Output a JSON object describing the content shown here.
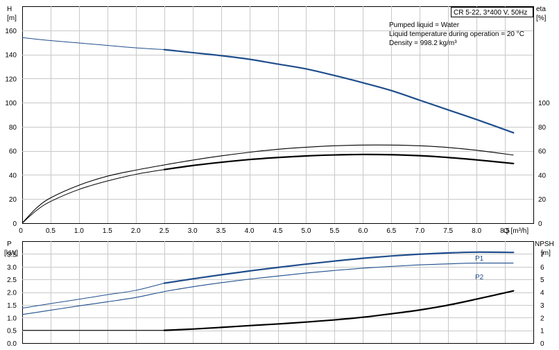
{
  "header": {
    "title": "CR 5-22, 3*400 V, 50Hz",
    "info": [
      "Pumped liquid = Water",
      "Liquid temperature during operation = 20 °C",
      "Density = 998.2 kg/m³"
    ]
  },
  "chart_data": [
    {
      "type": "line",
      "name": "head-efficiency",
      "xlabel": "Q [m³/h]",
      "xlim": [
        0,
        9
      ],
      "xticks": [
        "0",
        "0.5",
        "1.0",
        "1.5",
        "2.0",
        "2.5",
        "3.0",
        "3.5",
        "4.0",
        "4.5",
        "5.0",
        "5.5",
        "6.0",
        "6.5",
        "7.0",
        "7.5",
        "8.0",
        "8.5"
      ],
      "left_axis": {
        "label_line1": "H",
        "label_line2": "[m]",
        "ylim": [
          0,
          180
        ],
        "ticks": [
          "0",
          "20",
          "40",
          "60",
          "80",
          "100",
          "120",
          "140",
          "160"
        ]
      },
      "right_axis": {
        "label_line1": "eta",
        "label_line2": "[%]",
        "ylim": [
          0,
          180
        ],
        "ticks": [
          "0",
          "20",
          "40",
          "60",
          "80",
          "100"
        ]
      },
      "grid": true,
      "series": [
        {
          "role": "H",
          "color": "#1f4e8c",
          "x": [
            0,
            0.5,
            1.0,
            1.5,
            2.0,
            2.5,
            3.0,
            3.5,
            4.0,
            4.5,
            5.0,
            5.5,
            6.0,
            6.5,
            7.0,
            7.5,
            8.0,
            8.65
          ],
          "y": [
            154,
            151.5,
            149.5,
            147.5,
            145.5,
            144,
            141.5,
            139,
            136,
            132,
            128,
            122.5,
            116.5,
            110,
            102,
            94,
            86,
            75
          ],
          "bold_from": 2.5
        },
        {
          "role": "eta",
          "color": "#000000",
          "x": [
            0,
            0.25,
            0.5,
            1.0,
            1.5,
            2.0,
            2.5,
            3.0,
            3.5,
            4.0,
            4.5,
            5.0,
            5.5,
            6.0,
            6.5,
            7.0,
            7.5,
            8.0,
            8.65
          ],
          "y": [
            0,
            10.5,
            18,
            28,
            35,
            40.5,
            44.5,
            47.8,
            50.5,
            52.8,
            54.5,
            55.8,
            56.6,
            57,
            56.8,
            56,
            54.5,
            52.5,
            49.5
          ],
          "bold_from": 2.5
        },
        {
          "role": "eta-thin",
          "color": "#000000",
          "x": [
            0,
            0.25,
            0.5,
            1.0,
            1.5,
            2.0,
            2.5,
            3.0,
            3.5,
            4.0,
            4.5,
            5.0,
            5.5,
            6.0,
            6.5,
            7.0,
            7.5,
            8.0,
            8.65
          ],
          "y": [
            0,
            12.5,
            21,
            31.5,
            39,
            44,
            48.3,
            52.3,
            55.8,
            58.8,
            61.3,
            63,
            64.2,
            64.8,
            64.8,
            64.2,
            62.8,
            60.5,
            56.5
          ]
        }
      ]
    },
    {
      "type": "line",
      "name": "power-npsh",
      "xlim": [
        0,
        9
      ],
      "left_axis": {
        "label_line1": "P",
        "label_line2": "[kW]",
        "ylim": [
          0,
          4
        ],
        "ticks": [
          "0.0",
          "0.5",
          "1.0",
          "1.5",
          "2.0",
          "2.5",
          "3.0",
          "3.5"
        ]
      },
      "right_axis": {
        "label_line1": "NPSH",
        "label_line2": "[m]",
        "ylim": [
          0,
          8
        ],
        "ticks": [
          "0",
          "1",
          "2",
          "3",
          "4",
          "5",
          "6",
          "7"
        ]
      },
      "grid": true,
      "series": [
        {
          "name": "P1",
          "color": "#1f4e8c",
          "x": [
            0,
            0.5,
            1.0,
            1.5,
            2.0,
            2.5,
            3.0,
            3.5,
            4.0,
            4.5,
            5.0,
            5.5,
            6.0,
            6.5,
            7.0,
            7.5,
            8.0,
            8.65
          ],
          "y": [
            1.37,
            1.55,
            1.72,
            1.9,
            2.07,
            2.35,
            2.52,
            2.68,
            2.83,
            2.97,
            3.1,
            3.22,
            3.33,
            3.42,
            3.49,
            3.54,
            3.57,
            3.56
          ],
          "bold_from": 2.5
        },
        {
          "name": "P2",
          "color": "#1f4e8c",
          "x": [
            0,
            0.5,
            1.0,
            1.5,
            2.0,
            2.5,
            3.0,
            3.5,
            4.0,
            4.5,
            5.0,
            5.5,
            6.0,
            6.5,
            7.0,
            7.5,
            8.0,
            8.65
          ],
          "y": [
            1.12,
            1.29,
            1.46,
            1.62,
            1.79,
            2.02,
            2.21,
            2.37,
            2.51,
            2.63,
            2.75,
            2.85,
            2.94,
            3.01,
            3.07,
            3.11,
            3.14,
            3.14
          ]
        },
        {
          "role": "NPSH",
          "color": "#000000",
          "x": [
            0,
            2.5,
            3.0,
            3.5,
            4.0,
            4.5,
            5.0,
            5.5,
            6.0,
            6.5,
            7.0,
            7.5,
            8.0,
            8.65
          ],
          "y": [
            1.0,
            1.0,
            1.1,
            1.23,
            1.37,
            1.5,
            1.65,
            1.82,
            2.03,
            2.3,
            2.6,
            2.98,
            3.45,
            4.1
          ],
          "bold_from": 2.5
        }
      ]
    }
  ]
}
